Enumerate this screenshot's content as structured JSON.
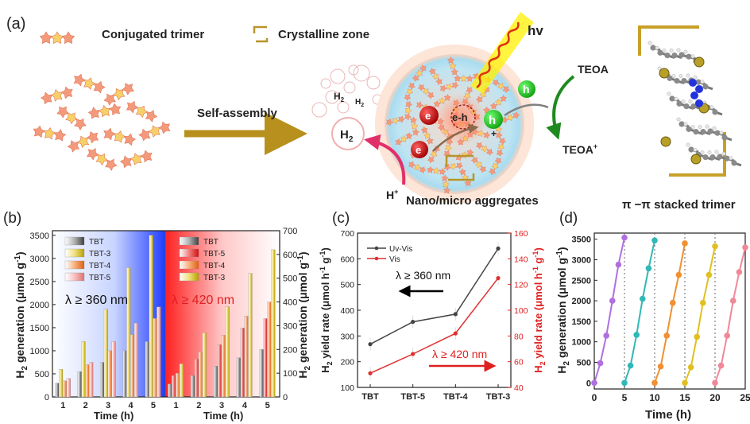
{
  "panel_a": {
    "label": "(a)",
    "legend_trimer": "Conjugated trimer",
    "legend_crystal": "Crystalline zone",
    "self_assembly": "Self-assembly",
    "h2_small": "H",
    "h2_small_sub": "2",
    "h2_small2": "H",
    "h2_small2_sub": "2",
    "h2_big": "H",
    "h2_big_sub": "2",
    "hplus": "H",
    "hplus_sup": "+",
    "hv": "hv",
    "e1": "e",
    "e2": "e",
    "eh": "e",
    "eh_h": "h",
    "h1": "h",
    "h2": "h",
    "teoa": "TEOA",
    "teoa_plus": "TEOA",
    "teoa_plus_sup": "+",
    "aggregates": "Nano/micro aggregates",
    "stacked": "π −π stacked trimer",
    "colors": {
      "trimer": "#f08a6a",
      "crystal": "#b8942a",
      "arrow": "#b8901e",
      "teoa_arrow": "#1f8a1f",
      "h_arrow": "#e0306a"
    }
  },
  "chart_data": [
    {
      "panel": "(b)",
      "type": "bar",
      "categories": [
        "1",
        "2",
        "3",
        "4",
        "5"
      ],
      "xlabel": "Time (h)",
      "ylabel": "H2 generation (μmol g-1)",
      "left_region": {
        "annotation": "λ ≥ 360 nm",
        "ylim": [
          0,
          3600
        ],
        "yticks": [
          "0",
          "500",
          "1000",
          "1500",
          "2000",
          "2500",
          "3000",
          "3500"
        ],
        "series": [
          {
            "name": "TBT",
            "values": [
              300,
              550,
              750,
              1000,
              1200
            ]
          },
          {
            "name": "TBT-3",
            "values": [
              600,
              1200,
              1900,
              2800,
              3500
            ]
          },
          {
            "name": "TBT-4",
            "values": [
              350,
              700,
              1000,
              1350,
              1700
            ]
          },
          {
            "name": "TBT-5",
            "values": [
              400,
              750,
              1200,
              1600,
              1950
            ]
          }
        ]
      },
      "right_region": {
        "annotation": "λ ≥ 420 nm",
        "ylim": [
          0,
          700
        ],
        "yticks": [
          "0",
          "100",
          "200",
          "300",
          "400",
          "500",
          "600",
          "700"
        ],
        "series": [
          {
            "name": "TBT",
            "values": [
              55,
              90,
              130,
              165,
              200
            ]
          },
          {
            "name": "TBT-5",
            "values": [
              90,
              160,
              220,
              290,
              330
            ]
          },
          {
            "name": "TBT-4",
            "values": [
              100,
              190,
              260,
              340,
              400
            ]
          },
          {
            "name": "TBT-3",
            "values": [
              140,
              270,
              380,
              520,
              620
            ]
          }
        ]
      },
      "legend_left": [
        "TBT",
        "TBT-3",
        "TBT-4",
        "TBT-5"
      ],
      "legend_right": [
        "TBT",
        "TBT-5",
        "TBT-4",
        "TBT-3"
      ]
    },
    {
      "panel": "(c)",
      "type": "line",
      "categories": [
        "TBT",
        "TBT-5",
        "TBT-4",
        "TBT-3"
      ],
      "ylabel_left": "H2 yield rate (μmol h-1 g-1)",
      "ylabel_right": "H2 yield rate (μmol h-1 g-1)",
      "ylim_left": [
        100,
        700
      ],
      "yticks_left": [
        "100",
        "200",
        "300",
        "400",
        "500",
        "600",
        "700"
      ],
      "ylim_right": [
        40,
        160
      ],
      "yticks_right": [
        "40",
        "60",
        "80",
        "100",
        "120",
        "140",
        "160"
      ],
      "annotation_left": "λ ≥ 360 nm",
      "annotation_right": "λ ≥ 420 nm",
      "series": [
        {
          "name": "Uv-Vis",
          "axis": "left",
          "color": "#444444",
          "values": [
            268,
            355,
            385,
            640
          ]
        },
        {
          "name": "Vis",
          "axis": "right",
          "color": "#e03030",
          "values": [
            51,
            66,
            82,
            125
          ]
        }
      ]
    },
    {
      "panel": "(d)",
      "type": "line",
      "xlabel": "Time (h)",
      "ylabel": "H2 generation (μmol g-1)",
      "xlim": [
        0,
        25
      ],
      "xticks": [
        "0",
        "5",
        "10",
        "15",
        "20",
        "25"
      ],
      "ylim": [
        -150,
        3650
      ],
      "yticks": [
        "0",
        "500",
        "1000",
        "1500",
        "2000",
        "2500",
        "3000",
        "3500"
      ],
      "cycles": [
        {
          "color": "#b070e0",
          "x": [
            0,
            1,
            2,
            3,
            4,
            5
          ],
          "y": [
            0,
            480,
            1150,
            2000,
            2880,
            3540
          ]
        },
        {
          "color": "#30b8b8",
          "x": [
            5,
            6,
            7,
            8,
            9,
            10
          ],
          "y": [
            0,
            420,
            1170,
            2050,
            2790,
            3470
          ]
        },
        {
          "color": "#f09030",
          "x": [
            10,
            11,
            12,
            13,
            14,
            15
          ],
          "y": [
            0,
            400,
            1150,
            1950,
            2630,
            3400
          ]
        },
        {
          "color": "#e0c020",
          "x": [
            15,
            16,
            17,
            18,
            19,
            20
          ],
          "y": [
            0,
            380,
            1120,
            1950,
            2630,
            3330
          ]
        },
        {
          "color": "#f08898",
          "x": [
            20,
            21,
            22,
            23,
            24,
            25
          ],
          "y": [
            0,
            420,
            1150,
            2000,
            2700,
            3300
          ]
        }
      ]
    }
  ],
  "labels": {
    "b": "(b)",
    "c": "(c)",
    "d": "(d)",
    "b_ylab_main": "H",
    "b_ylab_sub": "2",
    "b_ylab_rest": " generation (μmol g",
    "b_ylab_sup": "-1",
    "b_ylab_end": ")",
    "c_ylab_main": "H",
    "c_ylab_sub": "2",
    "c_ylab_rest": " yield rate (μmol h",
    "c_ylab_sup1": "-1",
    "c_ylab_mid": " g",
    "c_ylab_sup2": "-1",
    "c_ylab_end": ")",
    "time_h": "Time (h)"
  }
}
